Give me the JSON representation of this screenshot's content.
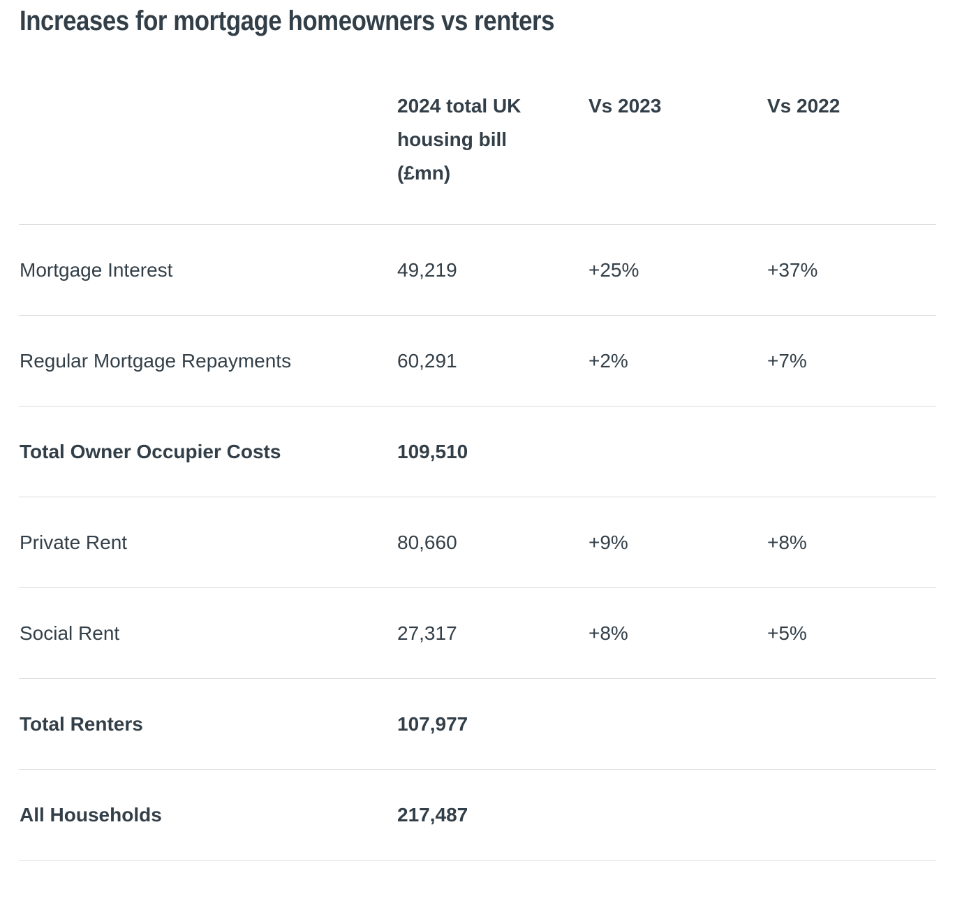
{
  "title": "Increases for mortgage homeowners vs renters",
  "colors": {
    "text": "#333f48",
    "divider": "#dcdcdc",
    "background": "#ffffff"
  },
  "chart_data": {
    "type": "table",
    "title": "Increases for mortgage homeowners vs renters",
    "columns": [
      "",
      "2024 total UK\nhousing bill\n(£mn)",
      "Vs 2023",
      "Vs 2022"
    ],
    "rows": [
      {
        "label": "Mortgage Interest",
        "value_2024": "49,219",
        "vs_2023": "+25%",
        "vs_2022": "+37%",
        "bold": false
      },
      {
        "label": "Regular Mortgage Repayments",
        "value_2024": "60,291",
        "vs_2023": "+2%",
        "vs_2022": "+7%",
        "bold": false
      },
      {
        "label": "Total Owner Occupier Costs",
        "value_2024": "109,510",
        "vs_2023": "",
        "vs_2022": "",
        "bold": true
      },
      {
        "label": "Private Rent",
        "value_2024": "80,660",
        "vs_2023": "+9%",
        "vs_2022": "+8%",
        "bold": false
      },
      {
        "label": "Social Rent",
        "value_2024": "27,317",
        "vs_2023": "+8%",
        "vs_2022": "+5%",
        "bold": false
      },
      {
        "label": "Total Renters",
        "value_2024": "107,977",
        "vs_2023": "",
        "vs_2022": "",
        "bold": true
      },
      {
        "label": "All Households",
        "value_2024": "217,487",
        "vs_2023": "",
        "vs_2022": "",
        "bold": true
      }
    ],
    "layout": {
      "grid": "horizontal-dividers-only",
      "legend": "none"
    }
  }
}
